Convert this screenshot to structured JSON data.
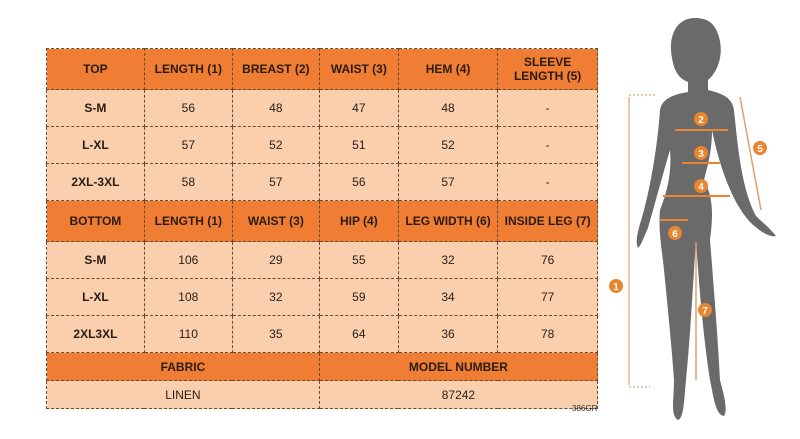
{
  "top": {
    "headers": [
      "TOP",
      "LENGTH (1)",
      "BREAST (2)",
      "WAIST (3)",
      "HEM (4)",
      "SLEEVE LENGTH (5)"
    ],
    "rows": [
      [
        "S-M",
        "56",
        "48",
        "47",
        "48",
        "-"
      ],
      [
        "L-XL",
        "57",
        "52",
        "51",
        "52",
        "-"
      ],
      [
        "2XL-3XL",
        "58",
        "57",
        "56",
        "57",
        "-"
      ]
    ]
  },
  "bottom": {
    "headers": [
      "BOTTOM",
      "LENGTH (1)",
      "WAIST (3)",
      "HIP (4)",
      "LEG WIDTH (6)",
      "INSIDE LEG (7)"
    ],
    "rows": [
      [
        "S-M",
        "106",
        "29",
        "55",
        "32",
        "76"
      ],
      [
        "L-XL",
        "108",
        "32",
        "59",
        "34",
        "77"
      ],
      [
        "2XL3XL",
        "110",
        "35",
        "64",
        "36",
        "78"
      ]
    ]
  },
  "fabric": {
    "label": "FABRIC",
    "value": "LINEN"
  },
  "model": {
    "label": "MODEL NUMBER",
    "value": "87242"
  },
  "code": "386GR",
  "figure": {
    "markers": [
      "1",
      "2",
      "3",
      "4",
      "5",
      "6",
      "7"
    ]
  },
  "colors": {
    "header": "#ef7d34",
    "cell": "#f9cfae",
    "silhouette": "#6a6a6a",
    "marker": "#e8852f"
  }
}
